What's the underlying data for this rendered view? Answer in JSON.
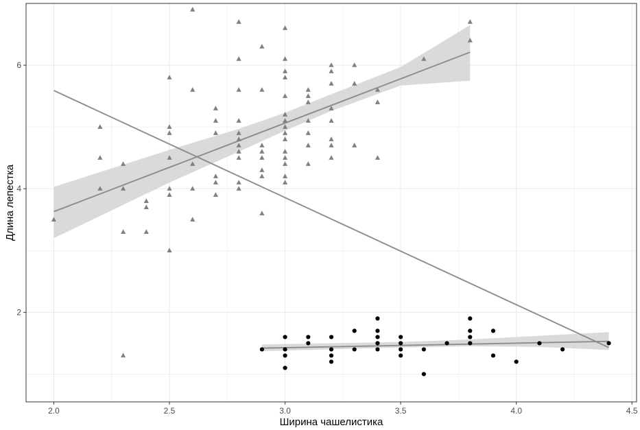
{
  "chart_data": {
    "type": "scatter",
    "title": "",
    "xlabel": "Ширина чашелистика",
    "ylabel": "Длина лепестка",
    "xlim": [
      1.88,
      4.52
    ],
    "ylim": [
      0.55,
      7.0
    ],
    "x_ticks": [
      {
        "value": 2.0,
        "label": "2.0"
      },
      {
        "value": 2.5,
        "label": "2.5"
      },
      {
        "value": 3.0,
        "label": "3.0"
      },
      {
        "value": 3.5,
        "label": "3.5"
      },
      {
        "value": 4.0,
        "label": "4.0"
      },
      {
        "value": 4.5,
        "label": "4.5"
      }
    ],
    "y_ticks": [
      {
        "value": 2,
        "label": "2"
      },
      {
        "value": 4,
        "label": "4"
      },
      {
        "value": 6,
        "label": "6"
      }
    ],
    "grid": true,
    "legend": "none",
    "colors": {
      "triangles": "#808080",
      "circles": "#000000",
      "fit_line": "#8c8c8c",
      "ribbon": "#d3d3d3",
      "grid": "#ebebeb",
      "panel_border": "#333333"
    },
    "series": [
      {
        "marker": "triangle",
        "points": [
          [
            2.0,
            3.5
          ],
          [
            2.2,
            5.0
          ],
          [
            2.2,
            4.5
          ],
          [
            2.2,
            4.0
          ],
          [
            2.3,
            4.4
          ],
          [
            2.3,
            4.0
          ],
          [
            2.3,
            3.3
          ],
          [
            2.3,
            1.3
          ],
          [
            2.4,
            3.8
          ],
          [
            2.4,
            3.7
          ],
          [
            2.4,
            3.3
          ],
          [
            2.5,
            5.8
          ],
          [
            2.5,
            5.0
          ],
          [
            2.5,
            4.9
          ],
          [
            2.5,
            4.5
          ],
          [
            2.5,
            4.0
          ],
          [
            2.5,
            3.9
          ],
          [
            2.5,
            3.0
          ],
          [
            2.6,
            6.9
          ],
          [
            2.6,
            5.6
          ],
          [
            2.6,
            4.4
          ],
          [
            2.6,
            4.0
          ],
          [
            2.6,
            3.5
          ],
          [
            2.7,
            5.3
          ],
          [
            2.7,
            5.1
          ],
          [
            2.7,
            4.9
          ],
          [
            2.7,
            4.2
          ],
          [
            2.7,
            4.1
          ],
          [
            2.7,
            3.9
          ],
          [
            2.8,
            6.7
          ],
          [
            2.8,
            6.1
          ],
          [
            2.8,
            5.6
          ],
          [
            2.8,
            5.1
          ],
          [
            2.8,
            4.9
          ],
          [
            2.8,
            4.8
          ],
          [
            2.8,
            4.7
          ],
          [
            2.8,
            4.6
          ],
          [
            2.8,
            4.5
          ],
          [
            2.8,
            4.1
          ],
          [
            2.8,
            4.0
          ],
          [
            2.9,
            6.3
          ],
          [
            2.9,
            5.6
          ],
          [
            2.9,
            4.7
          ],
          [
            2.9,
            4.6
          ],
          [
            2.9,
            4.5
          ],
          [
            2.9,
            4.3
          ],
          [
            2.9,
            4.2
          ],
          [
            2.9,
            3.6
          ],
          [
            3.0,
            6.6
          ],
          [
            3.0,
            6.1
          ],
          [
            3.0,
            5.9
          ],
          [
            3.0,
            5.8
          ],
          [
            3.0,
            5.5
          ],
          [
            3.0,
            5.2
          ],
          [
            3.0,
            5.1
          ],
          [
            3.0,
            5.0
          ],
          [
            3.0,
            4.9
          ],
          [
            3.0,
            4.8
          ],
          [
            3.0,
            4.6
          ],
          [
            3.0,
            4.5
          ],
          [
            3.0,
            4.4
          ],
          [
            3.0,
            4.2
          ],
          [
            3.0,
            4.1
          ],
          [
            3.1,
            5.6
          ],
          [
            3.1,
            5.5
          ],
          [
            3.1,
            5.4
          ],
          [
            3.1,
            5.1
          ],
          [
            3.1,
            4.9
          ],
          [
            3.1,
            4.7
          ],
          [
            3.1,
            4.4
          ],
          [
            3.2,
            6.0
          ],
          [
            3.2,
            5.9
          ],
          [
            3.2,
            5.7
          ],
          [
            3.2,
            5.3
          ],
          [
            3.2,
            5.1
          ],
          [
            3.2,
            4.8
          ],
          [
            3.2,
            4.7
          ],
          [
            3.2,
            4.5
          ],
          [
            3.3,
            6.0
          ],
          [
            3.3,
            5.7
          ],
          [
            3.3,
            4.7
          ],
          [
            3.4,
            5.6
          ],
          [
            3.4,
            5.4
          ],
          [
            3.4,
            4.5
          ],
          [
            3.6,
            6.1
          ],
          [
            3.8,
            6.7
          ],
          [
            3.8,
            6.4
          ]
        ],
        "fit": {
          "x": [
            2.0,
            3.8
          ],
          "y": [
            3.63,
            6.21
          ]
        },
        "ribbon": {
          "x": [
            2.0,
            2.5,
            2.8,
            3.0,
            3.2,
            3.5,
            3.8
          ],
          "upper": [
            4.03,
            4.63,
            4.97,
            5.23,
            5.53,
            5.97,
            6.65
          ],
          "lower": [
            3.2,
            4.1,
            4.6,
            4.94,
            5.26,
            5.67,
            5.75
          ]
        }
      },
      {
        "marker": "circle",
        "points": [
          [
            2.9,
            1.4
          ],
          [
            3.0,
            1.6
          ],
          [
            3.0,
            1.4
          ],
          [
            3.0,
            1.3
          ],
          [
            3.0,
            1.1
          ],
          [
            3.1,
            1.6
          ],
          [
            3.1,
            1.5
          ],
          [
            3.2,
            1.6
          ],
          [
            3.2,
            1.4
          ],
          [
            3.2,
            1.3
          ],
          [
            3.2,
            1.2
          ],
          [
            3.3,
            1.7
          ],
          [
            3.3,
            1.4
          ],
          [
            3.4,
            1.9
          ],
          [
            3.4,
            1.7
          ],
          [
            3.4,
            1.6
          ],
          [
            3.4,
            1.5
          ],
          [
            3.4,
            1.4
          ],
          [
            3.5,
            1.6
          ],
          [
            3.5,
            1.5
          ],
          [
            3.5,
            1.4
          ],
          [
            3.5,
            1.3
          ],
          [
            3.6,
            1.4
          ],
          [
            3.6,
            1.0
          ],
          [
            3.7,
            1.5
          ],
          [
            3.8,
            1.9
          ],
          [
            3.8,
            1.7
          ],
          [
            3.8,
            1.6
          ],
          [
            3.8,
            1.5
          ],
          [
            3.9,
            1.7
          ],
          [
            3.9,
            1.3
          ],
          [
            4.0,
            1.2
          ],
          [
            4.1,
            1.5
          ],
          [
            4.2,
            1.4
          ],
          [
            4.4,
            1.5
          ]
        ],
        "fit": {
          "x": [
            2.9,
            4.4
          ],
          "y": [
            1.42,
            1.53
          ]
        },
        "ribbon": {
          "x": [
            2.9,
            3.2,
            3.5,
            3.8,
            4.1,
            4.4
          ],
          "upper": [
            1.48,
            1.5,
            1.52,
            1.56,
            1.62,
            1.68
          ],
          "lower": [
            1.37,
            1.4,
            1.43,
            1.45,
            1.44,
            1.39
          ]
        }
      },
      {
        "marker": "none",
        "fit": {
          "x": [
            2.0,
            4.4
          ],
          "y": [
            5.59,
            1.43
          ]
        }
      }
    ]
  }
}
